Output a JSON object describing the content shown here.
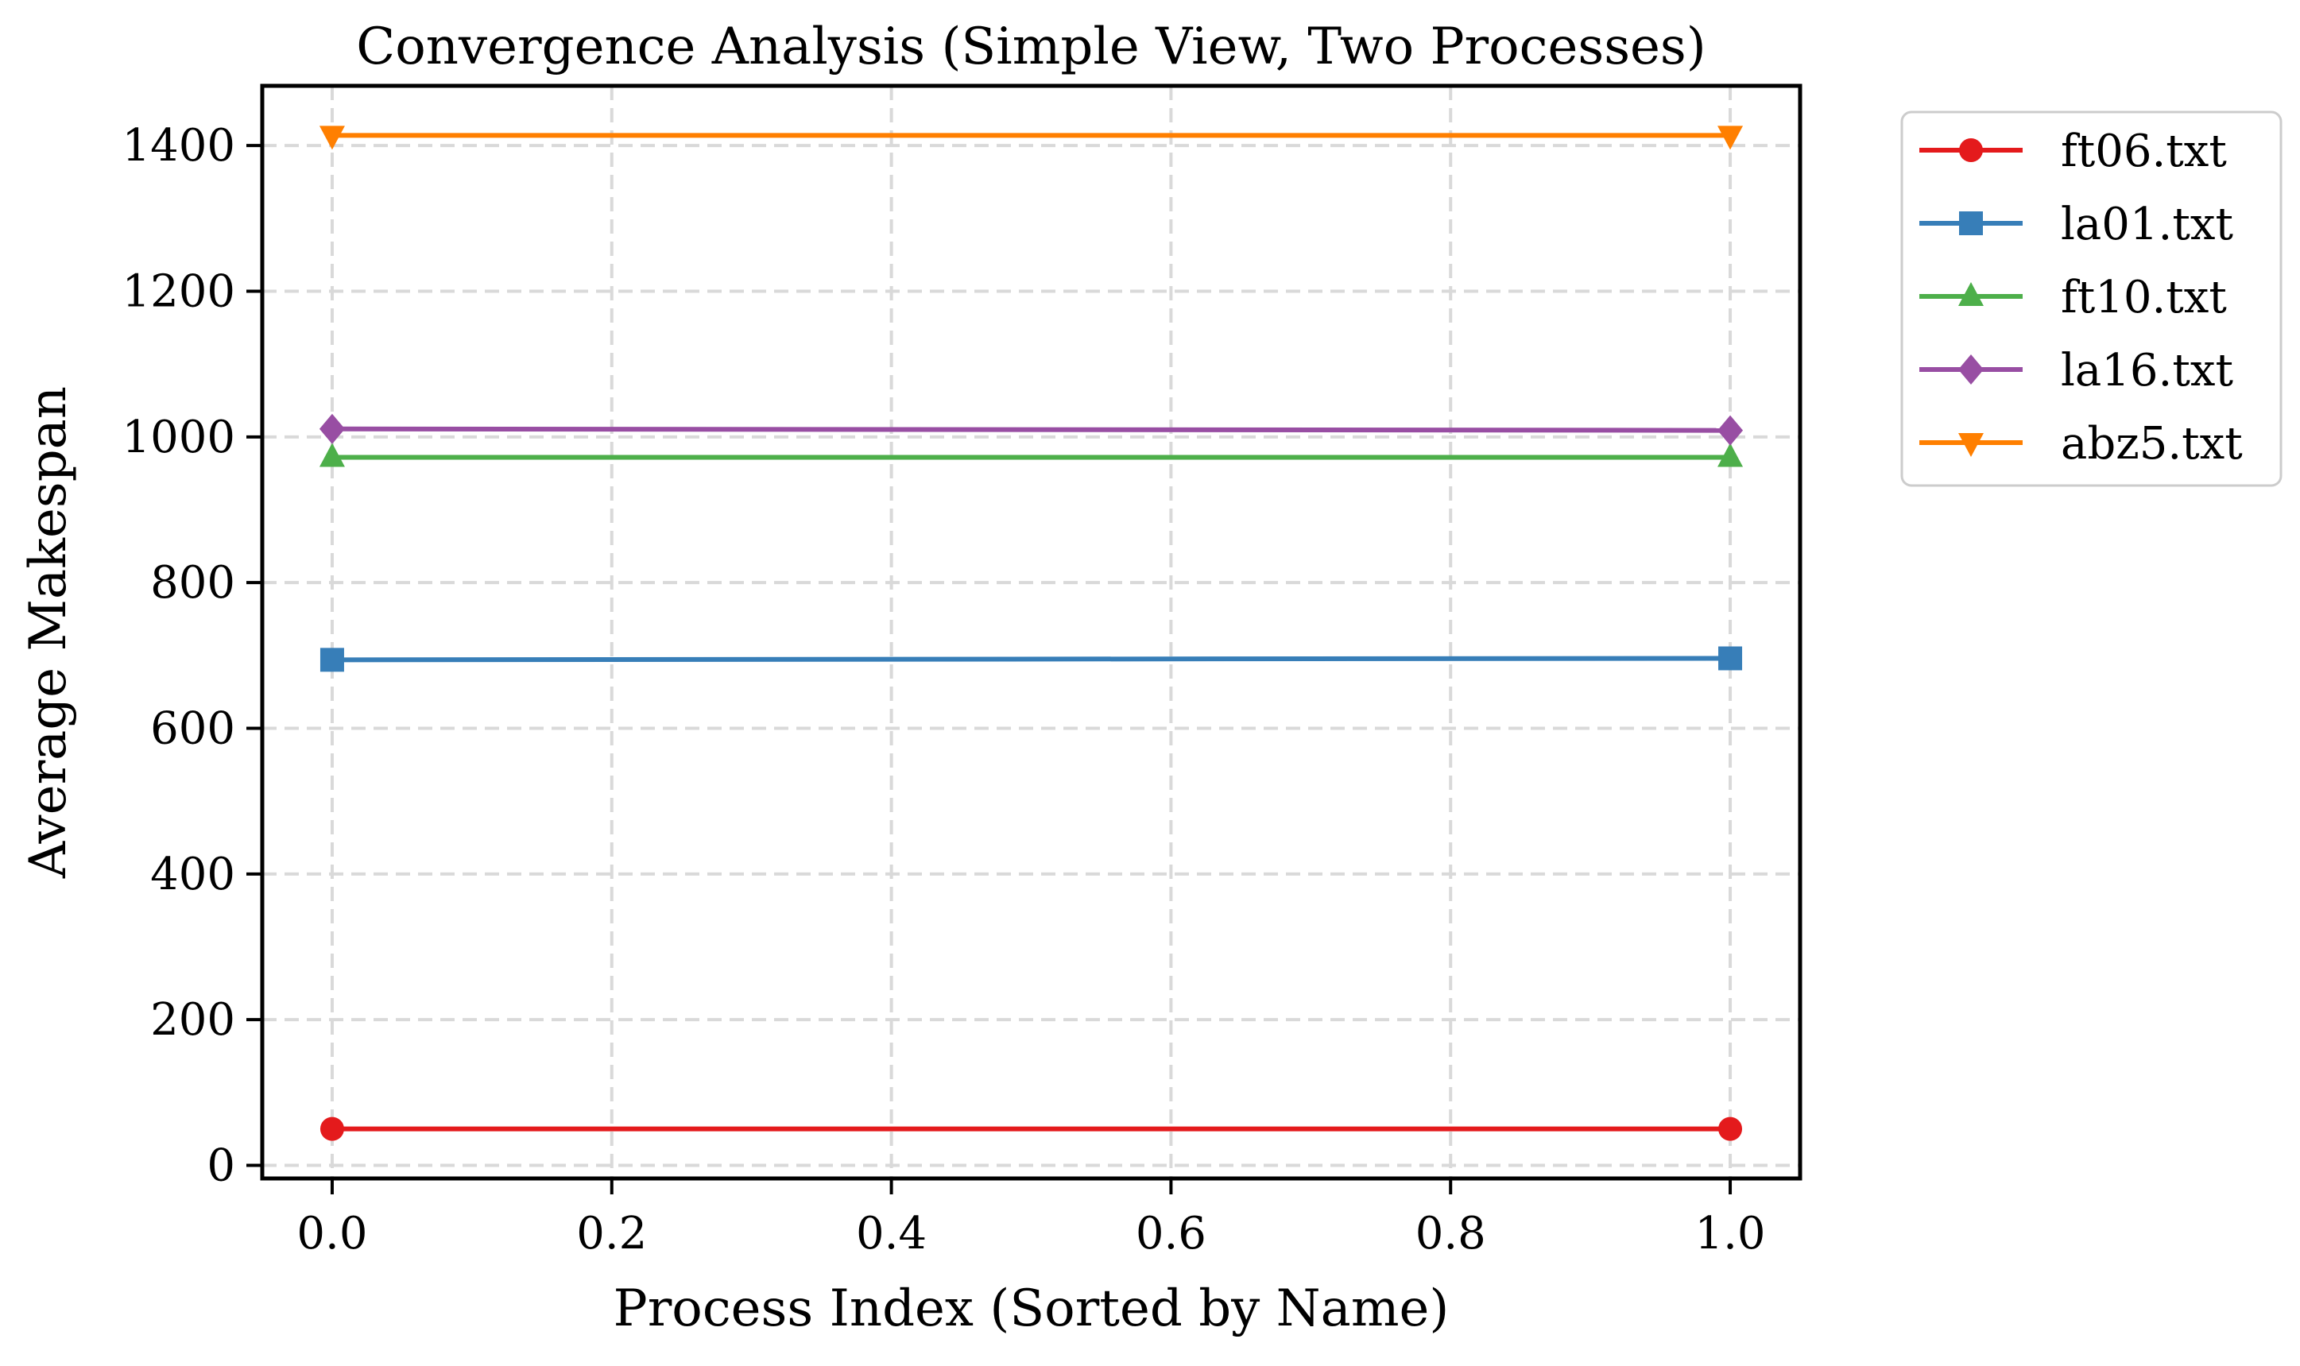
{
  "chart_data": {
    "type": "line",
    "title": "Convergence Analysis (Simple View, Two Processes)",
    "xlabel": "Process Index (Sorted by Name)",
    "ylabel": "Average Makespan",
    "x": [
      0,
      1
    ],
    "xlim": [
      -0.05,
      1.05
    ],
    "ylim": [
      -18,
      1482
    ],
    "xticks": [
      0.0,
      0.2,
      0.4,
      0.6,
      0.8,
      1.0
    ],
    "xtick_labels": [
      "0.0",
      "0.2",
      "0.4",
      "0.6",
      "0.8",
      "1.0"
    ],
    "yticks": [
      0,
      200,
      400,
      600,
      800,
      1000,
      1200,
      1400
    ],
    "ytick_labels": [
      "0",
      "200",
      "400",
      "600",
      "800",
      "1000",
      "1200",
      "1400"
    ],
    "grid": true,
    "legend_position": "outside-top-right",
    "series": [
      {
        "name": "ft06.txt",
        "values": [
          50,
          50
        ],
        "color": "#e41a1c",
        "marker": "circle"
      },
      {
        "name": "la01.txt",
        "values": [
          694,
          696
        ],
        "color": "#377eb8",
        "marker": "square"
      },
      {
        "name": "ft10.txt",
        "values": [
          972,
          972
        ],
        "color": "#4daf4a",
        "marker": "triangle-up"
      },
      {
        "name": "la16.txt",
        "values": [
          1011,
          1009
        ],
        "color": "#984ea3",
        "marker": "diamond"
      },
      {
        "name": "abz5.txt",
        "values": [
          1414,
          1414
        ],
        "color": "#ff7f00",
        "marker": "triangle-down"
      }
    ]
  }
}
